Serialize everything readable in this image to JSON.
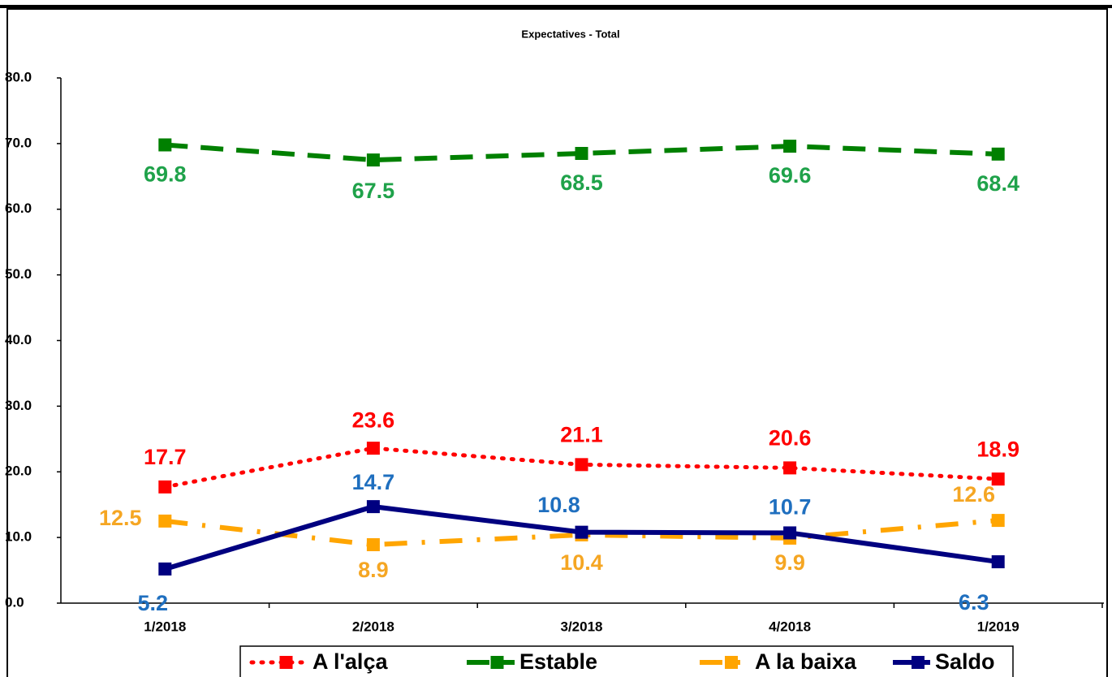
{
  "chart_data": {
    "type": "line",
    "title": "Expectatives - Total",
    "categories": [
      "1/2018",
      "2/2018",
      "3/2018",
      "4/2018",
      "1/2019"
    ],
    "series": [
      {
        "name": "A l'alça",
        "color": "#ff0000",
        "label_color": "#ff0000",
        "dash": "dotted",
        "values": [
          17.7,
          23.6,
          21.1,
          20.6,
          18.9
        ]
      },
      {
        "name": "Estable",
        "color": "#008000",
        "label_color": "#1fa24a",
        "dash": "dashed",
        "values": [
          69.8,
          67.5,
          68.5,
          69.6,
          68.4
        ]
      },
      {
        "name": "A la baixa",
        "color": "#ffa500",
        "label_color": "#f5a623",
        "dash": "dashdot",
        "values": [
          12.5,
          8.9,
          10.4,
          9.9,
          12.6
        ]
      },
      {
        "name": "Saldo",
        "color": "#000080",
        "label_color": "#1f6fbf",
        "dash": "solid",
        "values": [
          5.2,
          14.7,
          10.8,
          10.7,
          6.3
        ]
      }
    ],
    "ylim": [
      0,
      80
    ],
    "yticks": [
      {
        "value": 0,
        "label": "0.0"
      },
      {
        "value": 10,
        "label": "10.0"
      },
      {
        "value": 20,
        "label": "20.0"
      },
      {
        "value": 30,
        "label": "30.0"
      },
      {
        "value": 40,
        "label": "40.0"
      },
      {
        "value": 50,
        "label": "50.0"
      },
      {
        "value": 60,
        "label": "60.0"
      },
      {
        "value": 70,
        "label": "70.0"
      },
      {
        "value": 80,
        "label": "80.0"
      }
    ],
    "legend": "bottom"
  }
}
